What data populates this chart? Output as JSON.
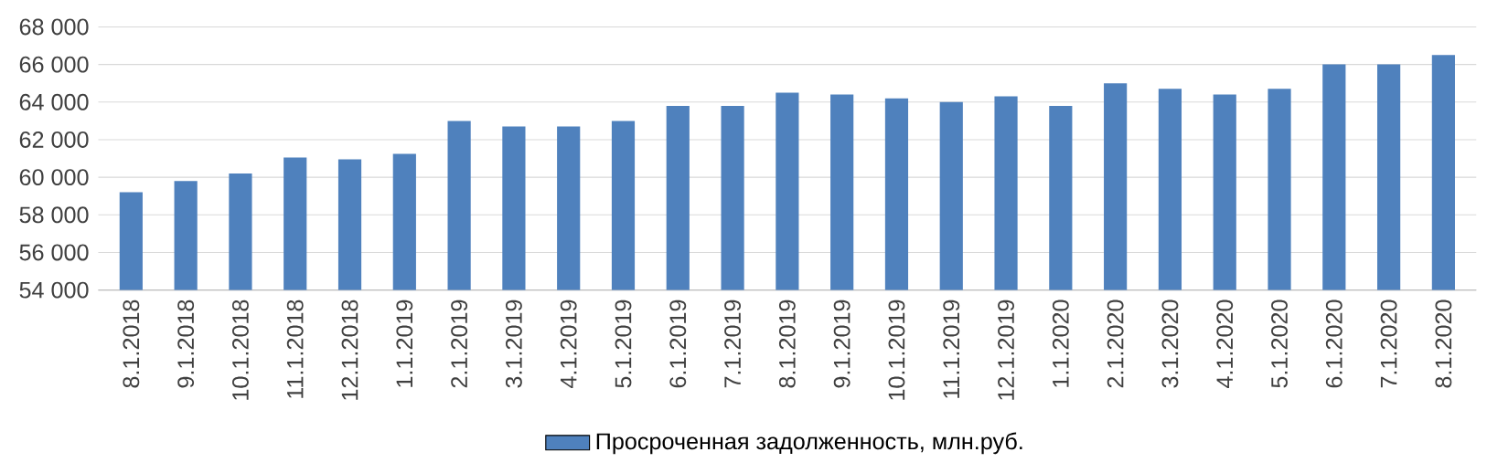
{
  "chart_data": {
    "type": "bar",
    "categories": [
      "8.1.2018",
      "9.1.2018",
      "10.1.2018",
      "11.1.2018",
      "12.1.2018",
      "1.1.2019",
      "2.1.2019",
      "3.1.2019",
      "4.1.2019",
      "5.1.2019",
      "6.1.2019",
      "7.1.2019",
      "8.1.2019",
      "9.1.2019",
      "10.1.2019",
      "11.1.2019",
      "12.1.2019",
      "1.1.2020",
      "2.1.2020",
      "3.1.2020",
      "4.1.2020",
      "5.1.2020",
      "6.1.2020",
      "7.1.2020",
      "8.1.2020"
    ],
    "series": [
      {
        "name": "Просроченная задолженность, млн.руб.",
        "color": "#4f81bd",
        "values": [
          59200,
          59800,
          60200,
          61050,
          60950,
          61250,
          63000,
          62700,
          62700,
          63000,
          63800,
          63800,
          64500,
          64400,
          64200,
          64000,
          64300,
          63800,
          65000,
          64700,
          64400,
          64700,
          66000,
          66000,
          66500
        ]
      }
    ],
    "ylim": [
      54000,
      68000
    ],
    "yticks": [
      {
        "value": 54000,
        "label": "54 000"
      },
      {
        "value": 56000,
        "label": "56 000"
      },
      {
        "value": 58000,
        "label": "58 000"
      },
      {
        "value": 60000,
        "label": "60 000"
      },
      {
        "value": 62000,
        "label": "62 000"
      },
      {
        "value": 64000,
        "label": "64 000"
      },
      {
        "value": 66000,
        "label": "66 000"
      },
      {
        "value": 68000,
        "label": "68 000"
      }
    ],
    "grid": "y",
    "legend": "bottom"
  }
}
